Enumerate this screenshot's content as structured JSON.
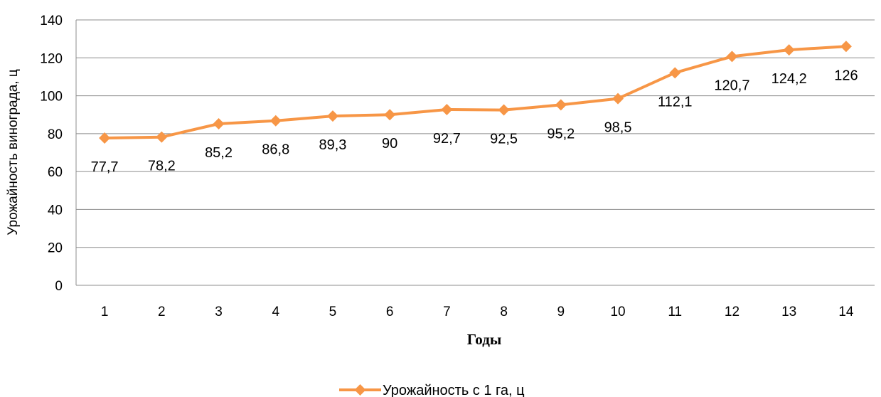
{
  "chart_data": {
    "type": "line",
    "title": "",
    "xlabel": "Годы",
    "ylabel": "Урожайность винограда, ц",
    "categories": [
      "1",
      "2",
      "3",
      "4",
      "5",
      "6",
      "7",
      "8",
      "9",
      "10",
      "11",
      "12",
      "13",
      "14"
    ],
    "ylim": [
      0,
      140
    ],
    "yticks": [
      0,
      20,
      40,
      60,
      80,
      100,
      120,
      140
    ],
    "grid": true,
    "legend_position": "bottom",
    "series": [
      {
        "name": "Урожайность с 1 га, ц",
        "color": "#F79646",
        "marker": "diamond",
        "values": [
          77.7,
          78.2,
          85.2,
          86.8,
          89.3,
          90,
          92.7,
          92.5,
          95.2,
          98.5,
          112.1,
          120.7,
          124.2,
          126
        ],
        "data_labels": [
          "77,7",
          "78,2",
          "85,2",
          "86,8",
          "89,3",
          "90",
          "92,7",
          "92,5",
          "95,2",
          "98,5",
          "112,1",
          "120,7",
          "124,2",
          "126"
        ]
      }
    ]
  }
}
